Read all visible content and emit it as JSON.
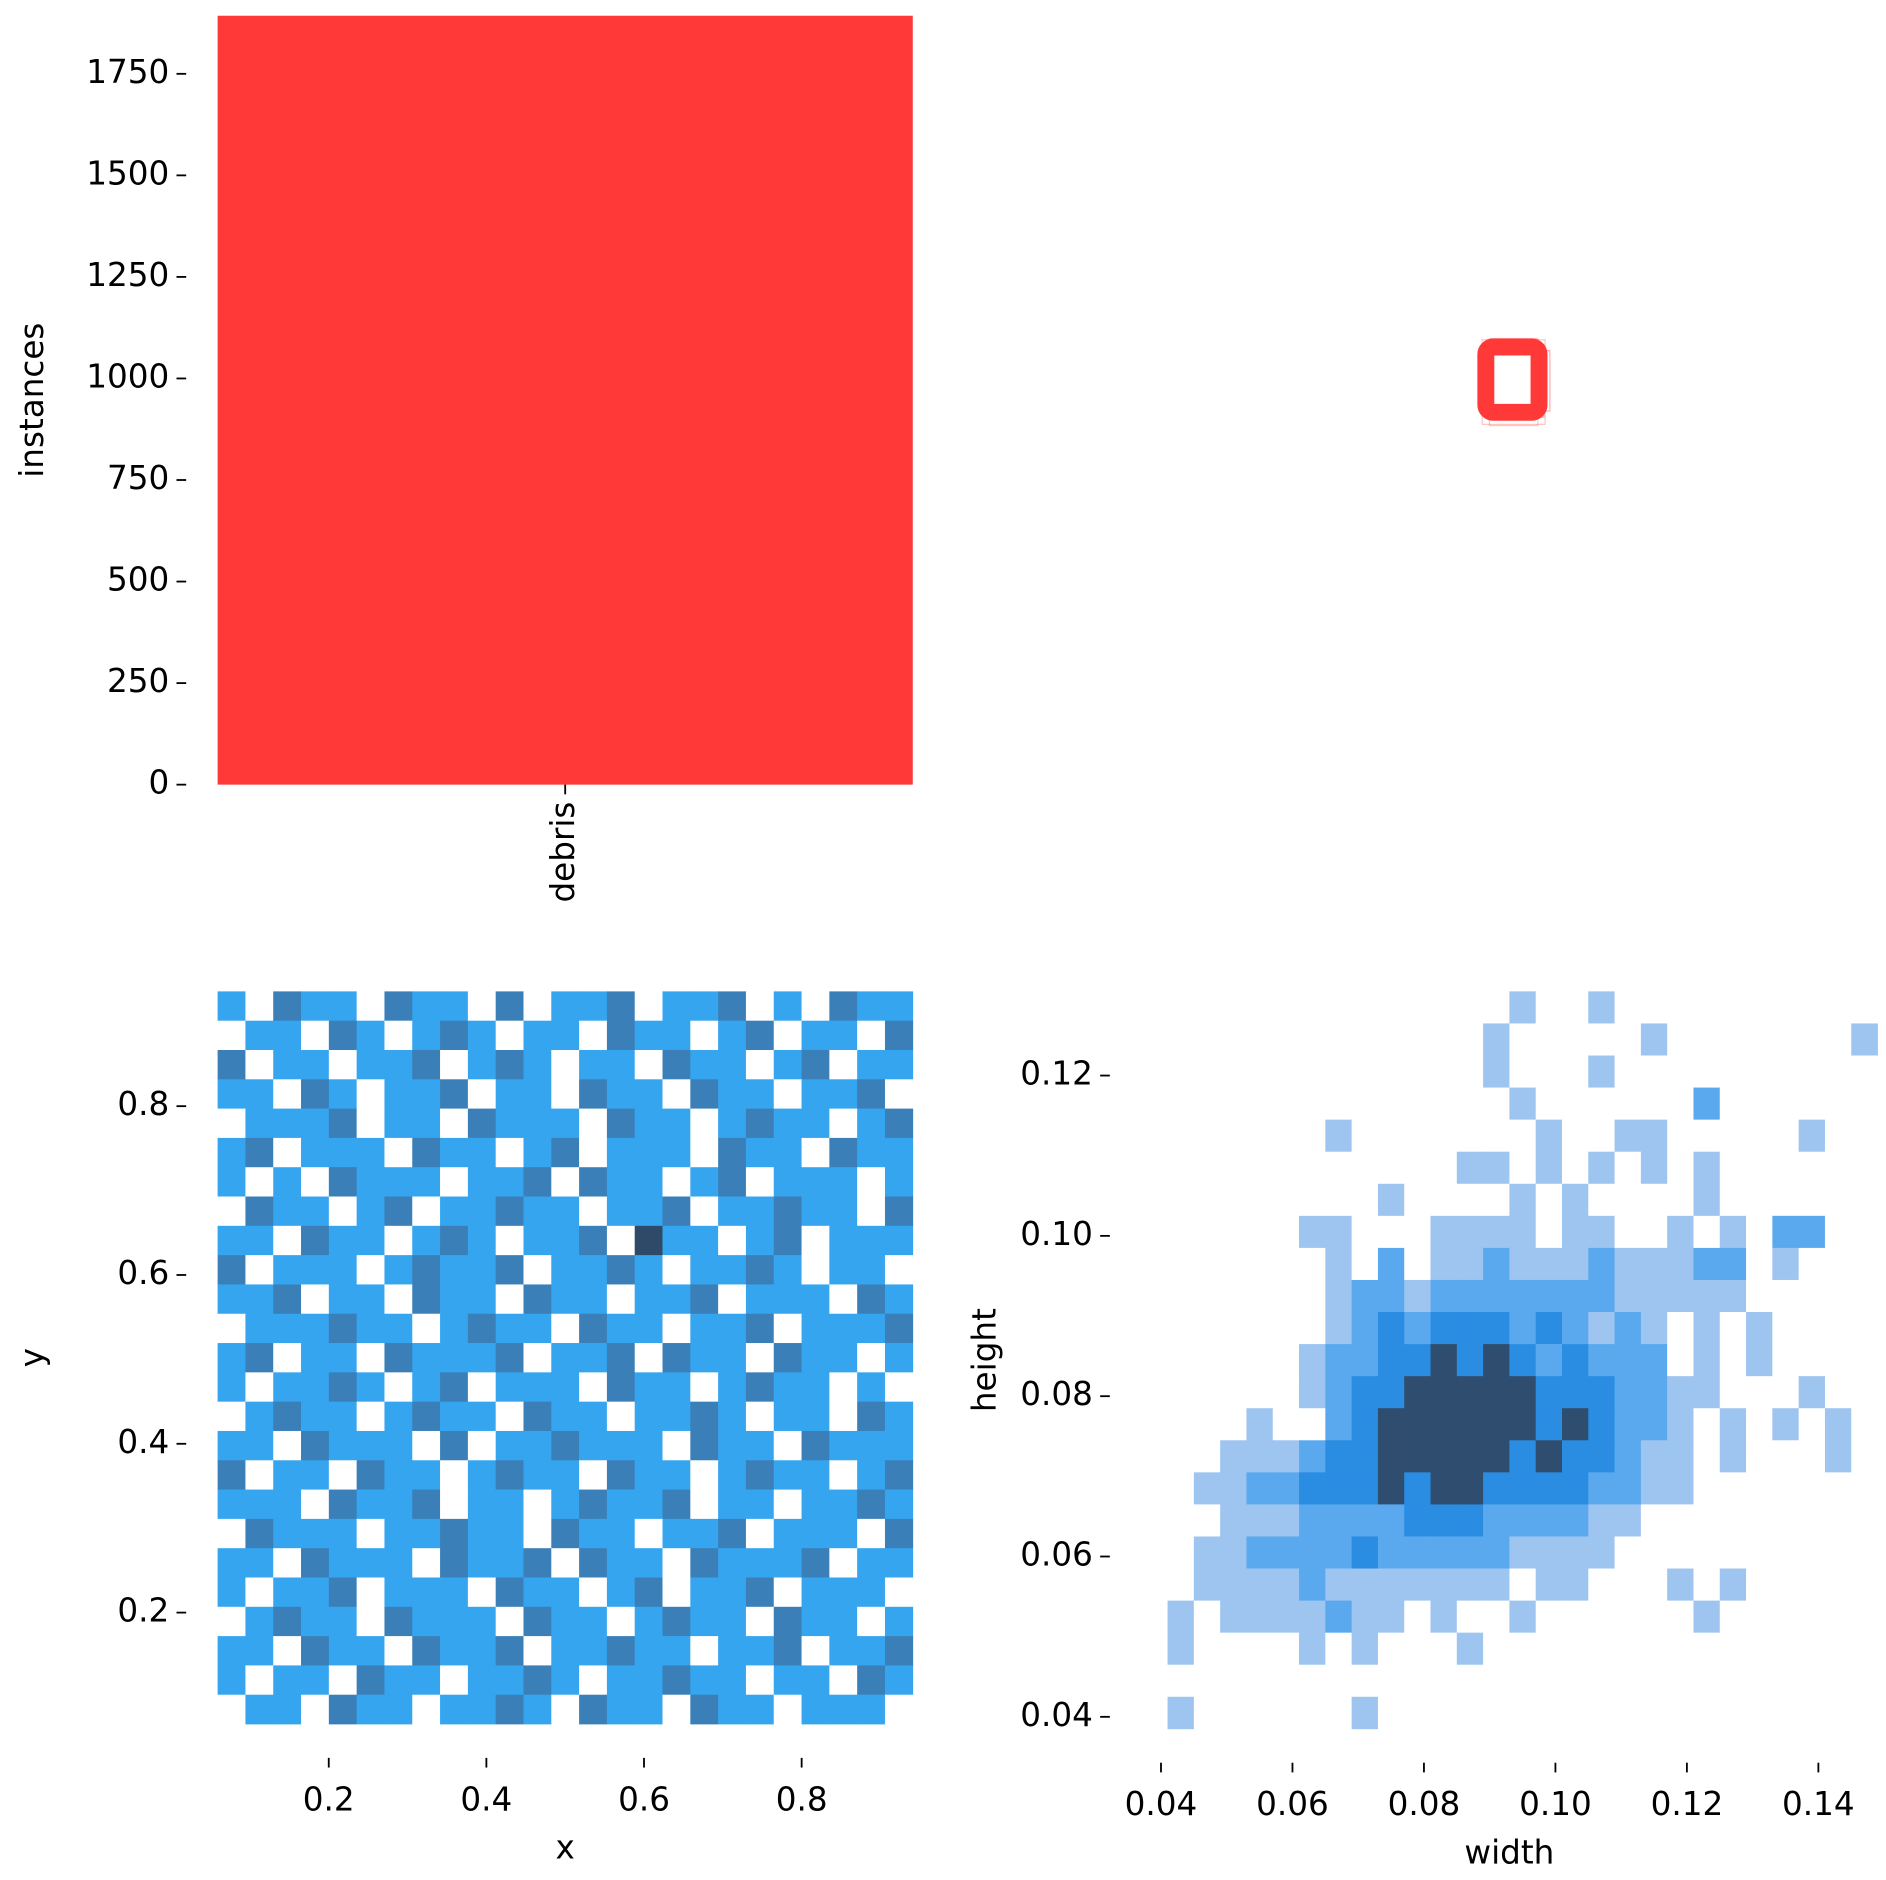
{
  "chart_data": [
    {
      "type": "bar",
      "ylabel": "instances",
      "categories": [
        "debris"
      ],
      "values": [
        1893
      ],
      "color": "#ff3838",
      "ylim": [
        0,
        1893
      ],
      "yticks": [
        0,
        250,
        500,
        750,
        1000,
        1250,
        1500,
        1750
      ]
    },
    {
      "type": "heatmap",
      "xlabel": "x",
      "ylabel": "y",
      "xlim": [
        0.059,
        0.941
      ],
      "ylim": [
        0.068,
        0.936
      ],
      "xticks": [
        0.2,
        0.4,
        0.6,
        0.8
      ],
      "yticks": [
        0.2,
        0.4,
        0.6,
        0.8
      ],
      "colors": [
        "#ffffff",
        "#35a5ef",
        "#3a7fb8",
        "#2e4a68"
      ],
      "values": [
        [
          1,
          0,
          2,
          1,
          1,
          0,
          2,
          1,
          1,
          0,
          2,
          0,
          1,
          1,
          2,
          0,
          1,
          1,
          2,
          0,
          1,
          0,
          2,
          1,
          1
        ],
        [
          0,
          1,
          1,
          0,
          2,
          1,
          0,
          1,
          2,
          1,
          0,
          1,
          1,
          0,
          2,
          1,
          1,
          0,
          1,
          2,
          0,
          1,
          1,
          0,
          2
        ],
        [
          2,
          0,
          1,
          1,
          0,
          1,
          1,
          2,
          0,
          1,
          2,
          1,
          0,
          1,
          1,
          0,
          2,
          1,
          1,
          0,
          1,
          2,
          0,
          1,
          1
        ],
        [
          1,
          1,
          0,
          2,
          1,
          0,
          1,
          1,
          2,
          0,
          1,
          1,
          0,
          2,
          1,
          1,
          0,
          2,
          1,
          1,
          0,
          1,
          1,
          2,
          0
        ],
        [
          0,
          1,
          1,
          1,
          2,
          0,
          1,
          1,
          0,
          2,
          1,
          1,
          1,
          0,
          2,
          1,
          1,
          0,
          1,
          2,
          1,
          1,
          0,
          1,
          2
        ],
        [
          1,
          2,
          0,
          1,
          1,
          1,
          0,
          2,
          1,
          1,
          0,
          1,
          2,
          0,
          1,
          1,
          1,
          0,
          2,
          1,
          1,
          0,
          2,
          1,
          1
        ],
        [
          1,
          0,
          1,
          0,
          2,
          1,
          1,
          1,
          0,
          1,
          1,
          2,
          0,
          2,
          1,
          1,
          0,
          1,
          2,
          0,
          1,
          1,
          1,
          0,
          1
        ],
        [
          0,
          2,
          1,
          1,
          0,
          1,
          2,
          0,
          1,
          1,
          2,
          1,
          1,
          0,
          1,
          1,
          2,
          0,
          1,
          1,
          2,
          1,
          1,
          0,
          2
        ],
        [
          1,
          1,
          0,
          2,
          1,
          1,
          0,
          1,
          2,
          1,
          0,
          1,
          1,
          2,
          0,
          3,
          1,
          1,
          0,
          1,
          2,
          0,
          1,
          1,
          1
        ],
        [
          2,
          0,
          1,
          1,
          1,
          0,
          1,
          2,
          1,
          1,
          2,
          0,
          1,
          1,
          2,
          1,
          0,
          1,
          1,
          2,
          1,
          0,
          1,
          1,
          0
        ],
        [
          1,
          1,
          2,
          0,
          1,
          1,
          0,
          2,
          1,
          1,
          0,
          2,
          1,
          1,
          0,
          1,
          1,
          2,
          0,
          1,
          1,
          1,
          0,
          2,
          1
        ],
        [
          0,
          1,
          1,
          1,
          2,
          1,
          1,
          0,
          1,
          2,
          1,
          1,
          0,
          2,
          1,
          1,
          0,
          1,
          1,
          2,
          0,
          1,
          1,
          1,
          2
        ],
        [
          1,
          2,
          0,
          1,
          1,
          0,
          2,
          1,
          1,
          1,
          2,
          0,
          1,
          1,
          2,
          0,
          2,
          1,
          1,
          0,
          2,
          1,
          1,
          0,
          1
        ],
        [
          1,
          0,
          1,
          1,
          2,
          1,
          0,
          1,
          2,
          0,
          1,
          1,
          1,
          0,
          2,
          1,
          1,
          0,
          1,
          2,
          1,
          1,
          0,
          1,
          0
        ],
        [
          0,
          1,
          2,
          1,
          1,
          0,
          1,
          2,
          1,
          1,
          0,
          2,
          1,
          1,
          0,
          1,
          1,
          2,
          1,
          0,
          1,
          1,
          0,
          2,
          1
        ],
        [
          1,
          1,
          0,
          2,
          1,
          1,
          1,
          0,
          2,
          0,
          1,
          1,
          2,
          1,
          1,
          1,
          0,
          2,
          1,
          1,
          0,
          2,
          1,
          1,
          1
        ],
        [
          2,
          0,
          1,
          1,
          0,
          2,
          1,
          1,
          0,
          1,
          2,
          1,
          1,
          0,
          2,
          1,
          1,
          0,
          1,
          2,
          1,
          1,
          0,
          1,
          2
        ],
        [
          1,
          1,
          1,
          0,
          2,
          1,
          1,
          2,
          0,
          1,
          1,
          0,
          1,
          2,
          1,
          1,
          2,
          0,
          1,
          1,
          0,
          1,
          1,
          2,
          1
        ],
        [
          0,
          2,
          1,
          1,
          1,
          0,
          1,
          1,
          2,
          1,
          1,
          0,
          2,
          1,
          1,
          0,
          1,
          1,
          2,
          0,
          1,
          1,
          1,
          0,
          2
        ],
        [
          1,
          1,
          0,
          2,
          1,
          1,
          1,
          0,
          2,
          1,
          1,
          2,
          0,
          2,
          1,
          1,
          0,
          2,
          1,
          1,
          1,
          2,
          0,
          1,
          1
        ],
        [
          1,
          0,
          1,
          1,
          2,
          0,
          1,
          1,
          1,
          0,
          2,
          1,
          1,
          0,
          1,
          2,
          0,
          1,
          1,
          2,
          0,
          1,
          1,
          1,
          0
        ],
        [
          0,
          1,
          2,
          1,
          1,
          0,
          2,
          1,
          1,
          1,
          0,
          2,
          1,
          1,
          0,
          1,
          2,
          1,
          1,
          0,
          2,
          1,
          1,
          0,
          1
        ],
        [
          1,
          1,
          0,
          2,
          1,
          1,
          0,
          2,
          1,
          1,
          2,
          0,
          1,
          1,
          2,
          1,
          1,
          0,
          1,
          1,
          2,
          0,
          1,
          1,
          2
        ],
        [
          1,
          0,
          1,
          1,
          0,
          2,
          1,
          1,
          0,
          1,
          1,
          2,
          1,
          0,
          1,
          1,
          2,
          1,
          1,
          0,
          1,
          1,
          0,
          2,
          1
        ],
        [
          0,
          1,
          1,
          0,
          2,
          1,
          1,
          0,
          1,
          1,
          2,
          1,
          0,
          2,
          1,
          1,
          0,
          2,
          1,
          1,
          0,
          1,
          1,
          1,
          0
        ]
      ]
    },
    {
      "type": "heatmap",
      "xlabel": "width",
      "ylabel": "height",
      "xlim": [
        0.037,
        0.149
      ],
      "ylim": [
        0.0385,
        0.1305
      ],
      "xticks": [
        0.04,
        0.06,
        0.08,
        {
          "value": 0.1,
          "label": "0.10"
        },
        0.12,
        0.14
      ],
      "yticks": [
        0.04,
        0.06,
        0.08,
        {
          "value": 0.1,
          "label": "0.10"
        },
        0.12
      ],
      "colors": [
        "#ffffff",
        "#9ec4f0",
        "#5aa9ee",
        "#2a8de2",
        "#2f4d6e"
      ],
      "values": [
        [
          0,
          0,
          0,
          0,
          0,
          0,
          0,
          0,
          0,
          0,
          0,
          0,
          0,
          0,
          1,
          0,
          0,
          1,
          0,
          0,
          0,
          0,
          0,
          0,
          0,
          0,
          0,
          0
        ],
        [
          0,
          0,
          0,
          0,
          0,
          0,
          0,
          0,
          0,
          0,
          0,
          0,
          0,
          1,
          0,
          0,
          0,
          0,
          0,
          1,
          0,
          0,
          0,
          0,
          0,
          0,
          0,
          1
        ],
        [
          0,
          0,
          0,
          0,
          0,
          0,
          0,
          0,
          0,
          0,
          0,
          0,
          0,
          1,
          0,
          0,
          0,
          1,
          0,
          0,
          0,
          0,
          0,
          0,
          0,
          0,
          0,
          0
        ],
        [
          0,
          0,
          0,
          0,
          0,
          0,
          0,
          0,
          0,
          0,
          0,
          0,
          0,
          0,
          1,
          0,
          0,
          0,
          0,
          0,
          0,
          2,
          0,
          0,
          0,
          0,
          0,
          0
        ],
        [
          0,
          0,
          0,
          0,
          0,
          0,
          0,
          1,
          0,
          0,
          0,
          0,
          0,
          0,
          0,
          1,
          0,
          0,
          1,
          1,
          0,
          0,
          0,
          0,
          0,
          1,
          0,
          0
        ],
        [
          0,
          0,
          0,
          0,
          0,
          0,
          0,
          0,
          0,
          0,
          0,
          0,
          1,
          1,
          0,
          1,
          0,
          1,
          0,
          1,
          0,
          1,
          0,
          0,
          0,
          0,
          0,
          0
        ],
        [
          0,
          0,
          0,
          0,
          0,
          0,
          0,
          0,
          0,
          1,
          0,
          0,
          0,
          0,
          1,
          0,
          1,
          0,
          0,
          0,
          0,
          1,
          0,
          0,
          0,
          0,
          0,
          0
        ],
        [
          0,
          0,
          0,
          0,
          0,
          0,
          1,
          1,
          0,
          0,
          0,
          1,
          1,
          1,
          1,
          0,
          1,
          1,
          0,
          0,
          1,
          0,
          1,
          0,
          2,
          2,
          0,
          0
        ],
        [
          0,
          0,
          0,
          0,
          0,
          0,
          0,
          1,
          0,
          2,
          0,
          1,
          1,
          2,
          1,
          1,
          1,
          2,
          1,
          1,
          1,
          2,
          2,
          0,
          1,
          0,
          0,
          0
        ],
        [
          0,
          0,
          0,
          0,
          0,
          0,
          0,
          1,
          2,
          2,
          1,
          2,
          2,
          2,
          2,
          2,
          2,
          2,
          1,
          1,
          1,
          1,
          1,
          0,
          0,
          0,
          0,
          0
        ],
        [
          0,
          0,
          0,
          0,
          0,
          0,
          0,
          1,
          2,
          3,
          2,
          3,
          3,
          3,
          2,
          3,
          2,
          1,
          2,
          1,
          0,
          1,
          0,
          1,
          0,
          0,
          0,
          0
        ],
        [
          0,
          0,
          0,
          0,
          0,
          0,
          1,
          2,
          2,
          3,
          3,
          4,
          3,
          4,
          3,
          2,
          3,
          2,
          2,
          2,
          0,
          1,
          0,
          1,
          0,
          0,
          0,
          0
        ],
        [
          0,
          0,
          0,
          0,
          0,
          0,
          1,
          2,
          3,
          3,
          4,
          4,
          4,
          4,
          4,
          3,
          3,
          3,
          2,
          2,
          1,
          1,
          0,
          0,
          0,
          1,
          0,
          0
        ],
        [
          0,
          0,
          0,
          0,
          1,
          0,
          0,
          2,
          3,
          4,
          4,
          4,
          4,
          4,
          4,
          3,
          4,
          3,
          2,
          2,
          1,
          0,
          1,
          0,
          1,
          0,
          1,
          0
        ],
        [
          0,
          0,
          0,
          1,
          1,
          1,
          2,
          3,
          3,
          4,
          4,
          4,
          4,
          4,
          3,
          4,
          3,
          3,
          2,
          1,
          1,
          0,
          1,
          0,
          0,
          0,
          1,
          0
        ],
        [
          0,
          0,
          1,
          1,
          2,
          2,
          3,
          3,
          3,
          4,
          3,
          4,
          4,
          3,
          3,
          3,
          3,
          2,
          2,
          1,
          1,
          0,
          0,
          0,
          0,
          0,
          0,
          0
        ],
        [
          0,
          0,
          0,
          1,
          1,
          1,
          2,
          2,
          2,
          2,
          3,
          3,
          3,
          2,
          2,
          2,
          2,
          1,
          1,
          0,
          0,
          0,
          0,
          0,
          0,
          0,
          0,
          0
        ],
        [
          0,
          0,
          1,
          1,
          2,
          2,
          2,
          2,
          3,
          2,
          2,
          2,
          2,
          2,
          1,
          1,
          1,
          1,
          0,
          0,
          0,
          0,
          0,
          0,
          0,
          0,
          0,
          0
        ],
        [
          0,
          0,
          1,
          1,
          1,
          1,
          2,
          1,
          1,
          1,
          1,
          1,
          1,
          1,
          0,
          1,
          1,
          0,
          0,
          0,
          1,
          0,
          1,
          0,
          0,
          0,
          0,
          0
        ],
        [
          0,
          1,
          0,
          1,
          1,
          1,
          1,
          2,
          1,
          1,
          0,
          1,
          0,
          0,
          1,
          0,
          0,
          0,
          0,
          0,
          0,
          1,
          0,
          0,
          0,
          0,
          0,
          0
        ],
        [
          0,
          1,
          0,
          0,
          0,
          0,
          1,
          0,
          1,
          0,
          0,
          0,
          1,
          0,
          0,
          0,
          0,
          0,
          0,
          0,
          0,
          0,
          0,
          0,
          0,
          0,
          0,
          0
        ],
        [
          0,
          0,
          0,
          0,
          0,
          0,
          0,
          0,
          0,
          0,
          0,
          0,
          0,
          0,
          0,
          0,
          0,
          0,
          0,
          0,
          0,
          0,
          0,
          0,
          0,
          0,
          0,
          0
        ],
        [
          0,
          1,
          0,
          0,
          0,
          0,
          0,
          0,
          1,
          0,
          0,
          0,
          0,
          0,
          0,
          0,
          0,
          0,
          0,
          0,
          0,
          0,
          0,
          0,
          0,
          0,
          0,
          0
        ]
      ]
    }
  ]
}
